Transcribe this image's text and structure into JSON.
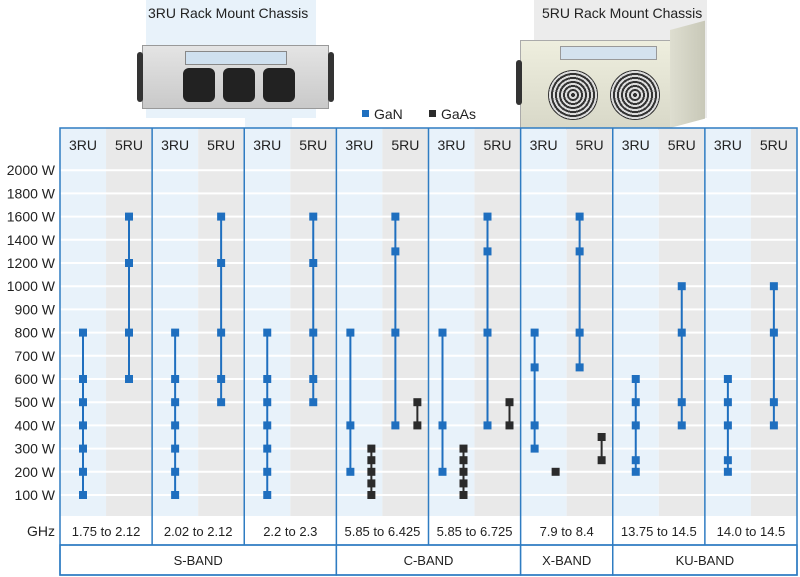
{
  "photos": {
    "left_title": "3RU Rack Mount Chassis",
    "right_title": "5RU Rack Mount Chassis"
  },
  "colors": {
    "gan": "#1f6fbf",
    "gaas": "#2b2b2b",
    "border": "#2f7cc2",
    "shade_3ru": "#e8f2fa",
    "shade_5ru": "#e9e9e9"
  },
  "chart_data": {
    "type": "range-dot",
    "legend": [
      {
        "name": "GaN",
        "color": "#1f6fbf"
      },
      {
        "name": "GaAs",
        "color": "#2b2b2b"
      }
    ],
    "legend_placement": "top-center",
    "y_ticks": [
      100,
      200,
      300,
      400,
      500,
      600,
      700,
      800,
      900,
      1000,
      1200,
      1400,
      1600,
      1800,
      2000
    ],
    "y_tick_labels": [
      "100 W",
      "200 W",
      "300 W",
      "400 W",
      "500 W",
      "600 W",
      "700 W",
      "800 W",
      "900 W",
      "1000 W",
      "1200 W",
      "1400 W",
      "1600 W",
      "1800 W",
      "2000 W"
    ],
    "y_range": [
      100,
      2000
    ],
    "grid": true,
    "x_label": "GHz",
    "sub_labels": [
      "3RU",
      "5RU"
    ],
    "columns": [
      {
        "freq": "1.75 to 2.12",
        "gan_3ru": [
          100,
          200,
          300,
          400,
          500,
          600,
          800
        ],
        "gaas_3ru": [],
        "gan_5ru": [
          600,
          800,
          1200,
          1600
        ],
        "gaas_5ru": []
      },
      {
        "freq": "2.02 to 2.12",
        "gan_3ru": [
          100,
          200,
          300,
          400,
          500,
          600,
          800
        ],
        "gaas_3ru": [],
        "gan_5ru": [
          500,
          600,
          800,
          1200,
          1600
        ],
        "gaas_5ru": []
      },
      {
        "freq": "2.2 to 2.3",
        "gan_3ru": [
          100,
          200,
          300,
          400,
          500,
          600,
          800
        ],
        "gaas_3ru": [],
        "gan_5ru": [
          500,
          600,
          800,
          1200,
          1600
        ],
        "gaas_5ru": []
      },
      {
        "freq": "5.85 to 6.425",
        "gan_3ru": [
          200,
          400,
          800
        ],
        "gaas_3ru": [
          100,
          150,
          200,
          250,
          300
        ],
        "gan_5ru": [
          400,
          800,
          1300,
          1600
        ],
        "gaas_5ru": [
          400,
          500
        ]
      },
      {
        "freq": "5.85 to 6.725",
        "gan_3ru": [
          200,
          400,
          800
        ],
        "gaas_3ru": [
          100,
          150,
          200,
          250,
          300
        ],
        "gan_5ru": [
          400,
          800,
          1300,
          1600
        ],
        "gaas_5ru": [
          400,
          500
        ]
      },
      {
        "freq": "7.9 to 8.4",
        "gan_3ru": [
          300,
          400,
          650,
          800
        ],
        "gaas_3ru": [
          200
        ],
        "gan_5ru": [
          650,
          800,
          1300,
          1600
        ],
        "gaas_5ru": [
          250,
          350
        ]
      },
      {
        "freq": "13.75 to 14.5",
        "gan_3ru": [
          200,
          250,
          400,
          500,
          600
        ],
        "gaas_3ru": [],
        "gan_5ru": [
          400,
          500,
          800,
          1000
        ],
        "gaas_5ru": []
      },
      {
        "freq": "14.0 to 14.5",
        "gan_3ru": [
          200,
          250,
          400,
          500,
          600
        ],
        "gaas_3ru": [],
        "gan_5ru": [
          400,
          500,
          800,
          1000
        ],
        "gaas_5ru": []
      }
    ],
    "bands": [
      {
        "label": "S-BAND",
        "columns": 3
      },
      {
        "label": "C-BAND",
        "columns": 2
      },
      {
        "label": "X-BAND",
        "columns": 1
      },
      {
        "label": "KU-BAND",
        "columns": 2
      }
    ]
  }
}
